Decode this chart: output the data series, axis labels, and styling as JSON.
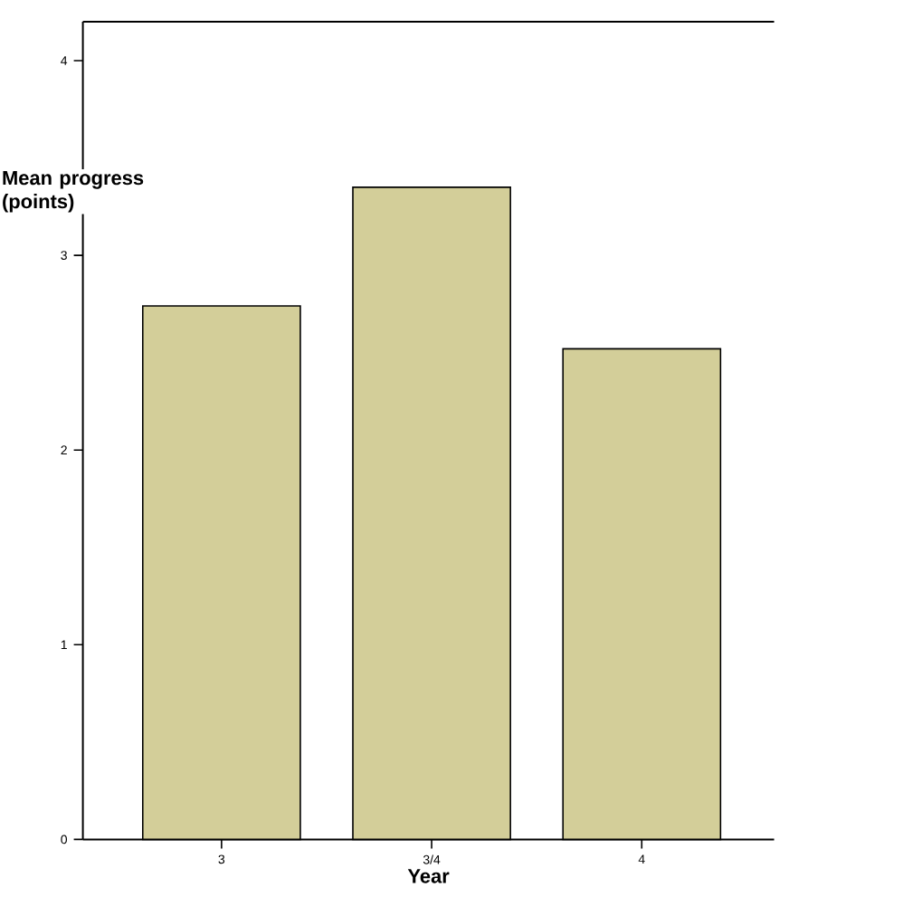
{
  "chart_data": {
    "type": "bar",
    "xlabel": "Year",
    "ylabel": "Mean progress (points)",
    "categories": [
      "3",
      "3/4",
      "4"
    ],
    "values": [
      2.74,
      3.35,
      2.52
    ],
    "color": "#d3ce99",
    "ylim": [
      0,
      4.2
    ],
    "yticks": [
      0,
      1,
      2,
      3,
      4
    ]
  }
}
